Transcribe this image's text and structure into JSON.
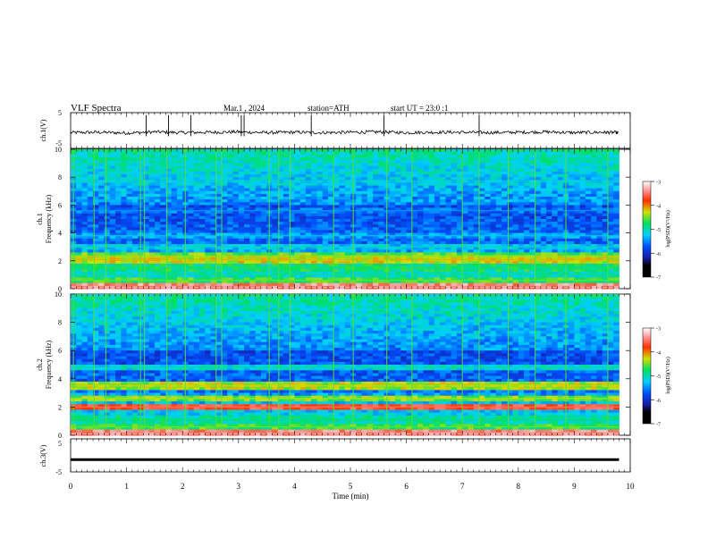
{
  "header": {
    "title": "VLF Spectra",
    "date": "Mar.1 , 2024",
    "station": "station=ATH",
    "start": "start UT = 23:0 :1"
  },
  "chart_data": [
    {
      "type": "line",
      "panel": "ch1-waveform",
      "ylabel": "ch.1(V)",
      "yticks": [
        "5",
        "-5"
      ],
      "ylim": [
        -5,
        5
      ],
      "xlim": [
        0,
        10
      ],
      "x": [
        0,
        0.5,
        1,
        1.5,
        2,
        2.5,
        3,
        3.5,
        4,
        4.5,
        5,
        5.5,
        6,
        6.5,
        7,
        7.5,
        8,
        8.5,
        9,
        9.5,
        9.8
      ],
      "y": [
        -0.6,
        -0.5,
        -0.7,
        -0.4,
        -0.6,
        -0.5,
        -0.4,
        -0.6,
        -0.5,
        -0.6,
        -0.5,
        -0.4,
        -0.6,
        -0.5,
        -0.5,
        -0.6,
        -0.5,
        -0.4,
        -0.6,
        -0.5,
        -0.6
      ],
      "spikes": [
        1.35,
        1.75,
        2.15,
        3.05,
        3.1,
        4.3,
        5.6,
        7.3
      ]
    },
    {
      "type": "heatmap",
      "panel": "ch1-spectrogram",
      "ylabel_line1": "ch.1",
      "ylabel_line2": "Frequency (kHz)",
      "yticks": [
        "0",
        "2",
        "4",
        "6",
        "8",
        "10"
      ],
      "ylim": [
        0,
        10
      ],
      "xlim": [
        0,
        9.8
      ],
      "colorbar": {
        "label": "log(PSD)(V²/Hz)",
        "ticks": [
          "-3",
          "-4",
          "-5",
          "-6",
          "-7"
        ],
        "range": [
          -7,
          -3
        ]
      },
      "bands_khz": [
        [
          0.1,
          -3.5
        ],
        [
          0.6,
          -5.0
        ],
        [
          1.0,
          -5.4
        ],
        [
          1.5,
          -5.2
        ],
        [
          2.1,
          -4.6
        ],
        [
          2.3,
          -4.9
        ],
        [
          3.0,
          -5.6
        ],
        [
          3.8,
          -5.8
        ],
        [
          5.6,
          -6.0
        ],
        [
          7.7,
          -5.6
        ]
      ],
      "sferics_min": [
        0.05,
        0.42,
        0.63,
        1.25,
        1.32,
        1.72,
        2.05,
        2.6,
        2.7,
        3.55,
        3.72,
        3.92,
        4.7,
        5.05,
        5.65,
        6.1,
        7.0,
        7.3,
        7.82,
        8.3,
        8.85,
        9.6
      ]
    },
    {
      "type": "heatmap",
      "panel": "ch2-spectrogram",
      "ylabel_line1": "ch.2",
      "ylabel_line2": "Frequency (kHz)",
      "yticks": [
        "0",
        "2",
        "4",
        "6",
        "8",
        "10"
      ],
      "ylim": [
        0,
        10
      ],
      "xlim": [
        0,
        9.8
      ],
      "colorbar": {
        "label": "log(PSD)(V²/Hz)",
        "ticks": [
          "-3",
          "-4",
          "-5",
          "-6",
          "-7"
        ],
        "range": [
          -7,
          -3
        ]
      },
      "bands_khz": [
        [
          0.1,
          -3.5
        ],
        [
          0.6,
          -5.0
        ],
        [
          1.1,
          -5.3
        ],
        [
          2.0,
          -3.8
        ],
        [
          2.6,
          -4.8
        ],
        [
          3.5,
          -4.7
        ],
        [
          4.8,
          -5.5
        ]
      ],
      "sferics_min": [
        0.05,
        0.42,
        0.63,
        1.25,
        1.32,
        1.72,
        2.05,
        2.6,
        2.7,
        3.55,
        3.72,
        3.92,
        4.7,
        5.05,
        5.65,
        6.1,
        7.0,
        7.3,
        7.82,
        8.3,
        8.85,
        9.6
      ]
    },
    {
      "type": "line",
      "panel": "ch3-waveform",
      "ylabel": "ch.3(V)",
      "yticks": [
        "5",
        "-5"
      ],
      "ylim": [
        -5,
        5
      ],
      "xlim": [
        0,
        10
      ],
      "x": [
        0,
        9.8
      ],
      "y": [
        -1.3,
        -1.3
      ]
    }
  ],
  "xaxis": {
    "label": "Time (min)",
    "ticks": [
      "0",
      "1",
      "2",
      "3",
      "4",
      "5",
      "6",
      "7",
      "8",
      "9",
      "10"
    ]
  }
}
